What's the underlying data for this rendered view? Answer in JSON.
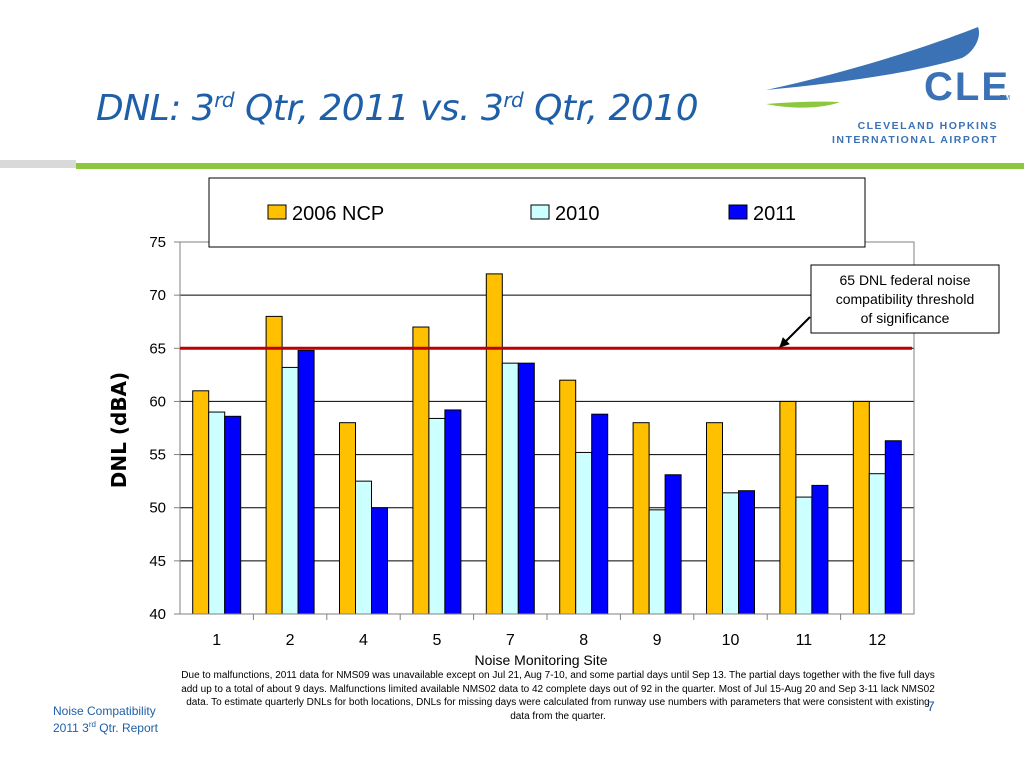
{
  "slide": {
    "title_pre": "DNL: 3",
    "title_sup1": "rd",
    "title_mid": " Qtr, 2011 vs. 3",
    "title_sup2": "rd",
    "title_post": " Qtr, 2010"
  },
  "logo": {
    "wordmark": "CLE",
    "tm": "TM",
    "line1": "CLEVELAND HOPKINS",
    "line2": "INTERNATIONAL AIRPORT"
  },
  "footer": {
    "line1": "Noise Compatibility",
    "line2_pre": "2011 3",
    "line2_sup": "rd",
    "line2_post": " Qtr. Report",
    "page": "7"
  },
  "footnote": "Due to malfunctions, 2011 data for NMS09 was unavailable except on Jul 21, Aug 7-10, and some partial days until Sep 13. The partial days together with the five full days add up to a total of about 9 days. Malfunctions limited available NMS02 data to 42 complete days out of 92 in the quarter. Most of Jul 15-Aug 20 and Sep 3-11 lack NMS02 data. To estimate quarterly DNLs for both locations, DNLs for missing days were calculated from runway use numbers with parameters that were consistent with existing data from the quarter.",
  "colors": {
    "title": "#1f5fa8",
    "green_rule": "#8dc63f",
    "threshold": "#c00000",
    "series": [
      "#ffc000",
      "#ccffff",
      "#0000ff"
    ],
    "logo_blue": "#3b72b5",
    "logo_green": "#8dc63f"
  },
  "chart_data": {
    "type": "bar",
    "categories": [
      "1",
      "2",
      "4",
      "5",
      "7",
      "8",
      "9",
      "10",
      "11",
      "12"
    ],
    "series": [
      {
        "name": "2006 NCP",
        "values": [
          61,
          68,
          58,
          67,
          72,
          62,
          58,
          58,
          60,
          60
        ]
      },
      {
        "name": "2010",
        "values": [
          59,
          63.2,
          52.5,
          58.4,
          63.6,
          55.2,
          49.8,
          51.4,
          51,
          53.2
        ]
      },
      {
        "name": "2011",
        "values": [
          58.6,
          64.8,
          50,
          59.2,
          63.6,
          58.8,
          53.1,
          51.6,
          52.1,
          56.3
        ]
      }
    ],
    "xlabel": "Noise Monitoring Site",
    "ylabel": "DNL (dBA)",
    "ylim": [
      40,
      75
    ],
    "yticks": [
      "40",
      "45",
      "50",
      "55",
      "60",
      "65",
      "70",
      "75"
    ],
    "grid": true,
    "legend_position": "top",
    "threshold": {
      "value": 65,
      "label": [
        "65 DNL federal noise",
        "compatibility threshold",
        "of significance"
      ]
    }
  }
}
